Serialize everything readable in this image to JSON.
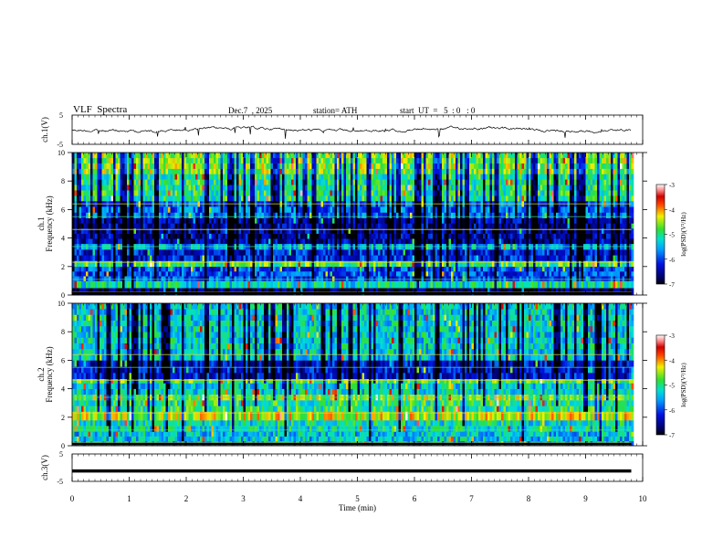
{
  "header": {
    "title": "VLF  Spectra",
    "date": "Dec.7  , 2025",
    "station": "station= ATH",
    "start_ut": "start  UT  =   5  : 0   : 0"
  },
  "chart_data": [
    {
      "type": "line",
      "name": "ch1-voltage",
      "ylabel": "ch.1(V)",
      "ylim": [
        -5,
        5
      ],
      "yticks": [
        "5",
        "-5"
      ],
      "xlim": [
        0,
        10
      ],
      "description_series": "noisy waveform around 0 V, approx -1 to +1 V, data ends near 9.8 min"
    },
    {
      "type": "heatmap",
      "name": "ch1-spectrogram",
      "ylabel": "ch.1\nFrequency  (kHz)",
      "ylabel_top": "ch.1",
      "ylabel_bottom": "Frequency  (kHz)",
      "ylim": [
        0,
        10
      ],
      "yticks": [
        "0",
        "2",
        "4",
        "6",
        "8",
        "10"
      ],
      "xlim": [
        0,
        10
      ],
      "colorbar": {
        "label": "log(PSD)(V²/Hz)",
        "ticks": [
          "-3",
          "-4",
          "-5",
          "-6",
          "-7"
        ],
        "range": [
          -7,
          -3
        ]
      },
      "bands_khz": [
        {
          "f0": 0.0,
          "f1": 0.5,
          "level": -6.8
        },
        {
          "f0": 0.5,
          "f1": 1.0,
          "level": -5.2
        },
        {
          "f0": 1.0,
          "f1": 2.0,
          "level": -6.0
        },
        {
          "f0": 2.0,
          "f1": 2.4,
          "level": -4.8
        },
        {
          "f0": 2.4,
          "f1": 3.2,
          "level": -6.2
        },
        {
          "f0": 3.2,
          "f1": 3.6,
          "level": -5.5
        },
        {
          "f0": 3.6,
          "f1": 5.4,
          "level": -6.5
        },
        {
          "f0": 5.4,
          "f1": 6.6,
          "level": -5.8
        },
        {
          "f0": 6.6,
          "f1": 8.5,
          "level": -5.0
        },
        {
          "f0": 8.5,
          "f1": 10.0,
          "level": -4.6
        }
      ]
    },
    {
      "type": "heatmap",
      "name": "ch2-spectrogram",
      "ylabel_top": "ch.2",
      "ylabel_bottom": "Frequency  (kHz)",
      "ylim": [
        0,
        10
      ],
      "yticks": [
        "0",
        "2",
        "4",
        "6",
        "8",
        "10"
      ],
      "xlim": [
        0,
        10
      ],
      "colorbar": {
        "label": "log(PSD)(V²/Hz)",
        "ticks": [
          "-3",
          "-4",
          "-5",
          "-6",
          "-7"
        ],
        "range": [
          -7,
          -3
        ]
      },
      "bands_khz": [
        {
          "f0": 0.0,
          "f1": 1.0,
          "level": -5.4
        },
        {
          "f0": 1.0,
          "f1": 1.8,
          "level": -5.2
        },
        {
          "f0": 1.8,
          "f1": 2.4,
          "level": -4.4
        },
        {
          "f0": 2.4,
          "f1": 3.2,
          "level": -5.0
        },
        {
          "f0": 3.2,
          "f1": 3.6,
          "level": -4.6
        },
        {
          "f0": 3.6,
          "f1": 4.4,
          "level": -5.3
        },
        {
          "f0": 4.4,
          "f1": 4.7,
          "level": -4.8
        },
        {
          "f0": 4.7,
          "f1": 6.0,
          "level": -6.3
        },
        {
          "f0": 6.0,
          "f1": 10.0,
          "level": -5.3
        }
      ]
    },
    {
      "type": "line",
      "name": "ch3-voltage",
      "ylabel": "ch.3(V)",
      "ylim": [
        -5,
        5
      ],
      "yticks": [
        "5",
        "-5"
      ],
      "xlim": [
        0,
        10
      ],
      "constant_value": -1.2
    }
  ],
  "xaxis": {
    "label": "Time  (min)",
    "ticks": [
      "0",
      "1",
      "2",
      "3",
      "4",
      "5",
      "6",
      "7",
      "8",
      "9",
      "10"
    ],
    "data_end_min": 9.8
  }
}
